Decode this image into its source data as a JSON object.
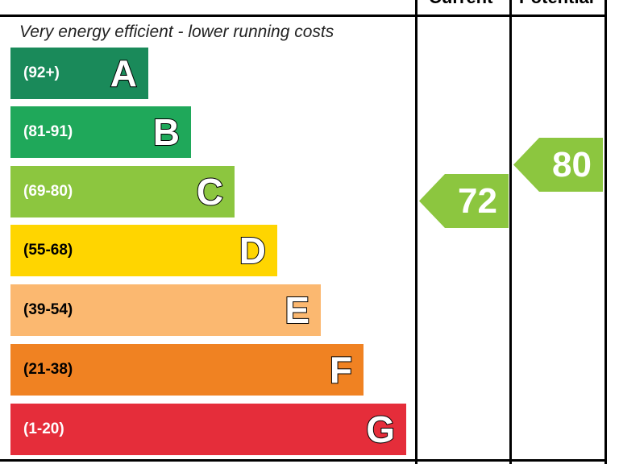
{
  "header": {
    "current_label": "Current",
    "potential_label": "Potential"
  },
  "top_text": "Very energy efficient - lower running costs",
  "chart_data": {
    "type": "bar",
    "categories": [
      "A",
      "B",
      "C",
      "D",
      "E",
      "F",
      "G"
    ],
    "ranges": [
      "(92+)",
      "(81-91)",
      "(69-80)",
      "(55-68)",
      "(39-54)",
      "(21-38)",
      "(1-20)"
    ],
    "colors": [
      "#1a8a5a",
      "#1fa85a",
      "#8cc63f",
      "#ffd500",
      "#fbb870",
      "#f08222",
      "#e52d3a"
    ],
    "current": {
      "value": 72,
      "band": "C",
      "color": "#8cc63f"
    },
    "potential": {
      "value": 80,
      "band": "C",
      "color": "#8cc63f"
    }
  }
}
